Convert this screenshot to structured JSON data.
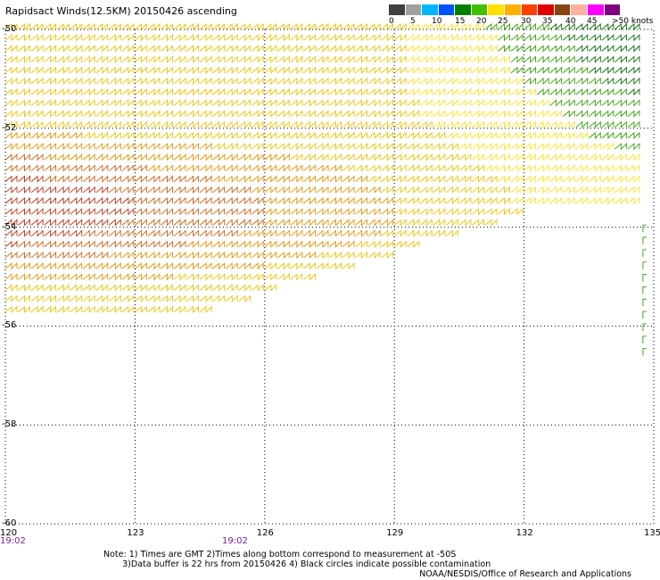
{
  "title": "Rapidsact Winds(12.5KM) 20150426 ascending",
  "colorbar": {
    "labels": [
      "0",
      "5",
      "10",
      "15",
      "20",
      "25",
      "30",
      "35",
      "40",
      "45",
      ">50 knots"
    ],
    "colors": [
      "#404040",
      "#a0a0a0",
      "#00b4ff",
      "#0050ff",
      "#008000",
      "#40c000",
      "#ffe000",
      "#ffb000",
      "#ff4000",
      "#e00000",
      "#8b4513",
      "#ffb0a0",
      "#ff00ff",
      "#800080"
    ]
  },
  "map": {
    "lat_labels": [
      "-50",
      "-52",
      "-54",
      "-56",
      "-58",
      "-60"
    ],
    "lon_labels": [
      "120",
      "123",
      "126",
      "129",
      "132",
      "135"
    ],
    "lat_values": [
      -50,
      -52,
      -54,
      -56,
      -58,
      -60
    ],
    "lon_values": [
      120,
      123,
      126,
      129,
      132,
      135
    ],
    "time_labels": [
      "19:02",
      "19:02"
    ]
  },
  "notes": "Note: 1) Times are GMT 2)Times along bottom correspond to measurement at -50S\n       3)Data buffer is 22 hrs from 20150426 4) Black circles indicate possible contamination",
  "credit": "NOAA/NESDIS/Office of Research and Applications"
}
